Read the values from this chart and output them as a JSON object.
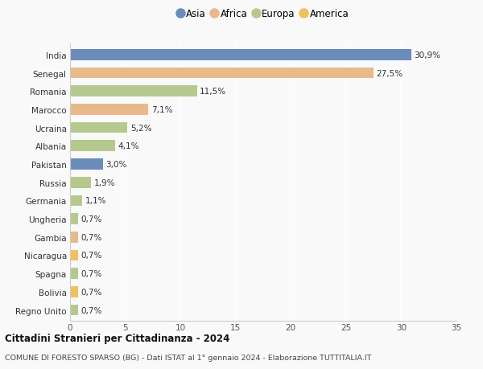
{
  "categories": [
    "India",
    "Senegal",
    "Romania",
    "Marocco",
    "Ucraina",
    "Albania",
    "Pakistan",
    "Russia",
    "Germania",
    "Ungheria",
    "Gambia",
    "Nicaragua",
    "Spagna",
    "Bolivia",
    "Regno Unito"
  ],
  "values": [
    30.9,
    27.5,
    11.5,
    7.1,
    5.2,
    4.1,
    3.0,
    1.9,
    1.1,
    0.7,
    0.7,
    0.7,
    0.7,
    0.7,
    0.7
  ],
  "labels": [
    "30,9%",
    "27,5%",
    "11,5%",
    "7,1%",
    "5,2%",
    "4,1%",
    "3,0%",
    "1,9%",
    "1,1%",
    "0,7%",
    "0,7%",
    "0,7%",
    "0,7%",
    "0,7%",
    "0,7%"
  ],
  "continents": [
    "Asia",
    "Africa",
    "Europa",
    "Africa",
    "Europa",
    "Europa",
    "Asia",
    "Europa",
    "Europa",
    "Europa",
    "Africa",
    "America",
    "Europa",
    "America",
    "Europa"
  ],
  "colors": {
    "Asia": "#6b8cba",
    "Africa": "#e8b98a",
    "Europa": "#b5c98e",
    "America": "#f0c060"
  },
  "legend_order": [
    "Asia",
    "Africa",
    "Europa",
    "America"
  ],
  "title1": "Cittadini Stranieri per Cittadinanza - 2024",
  "title2": "COMUNE DI FORESTO SPARSO (BG) - Dati ISTAT al 1° gennaio 2024 - Elaborazione TUTTITALIA.IT",
  "xlim": [
    0,
    35
  ],
  "xticks": [
    0,
    5,
    10,
    15,
    20,
    25,
    30,
    35
  ],
  "background_color": "#f9f9f9",
  "grid_color": "#ffffff",
  "bar_label_fontsize": 7.5,
  "ytick_fontsize": 7.5,
  "xtick_fontsize": 7.5
}
